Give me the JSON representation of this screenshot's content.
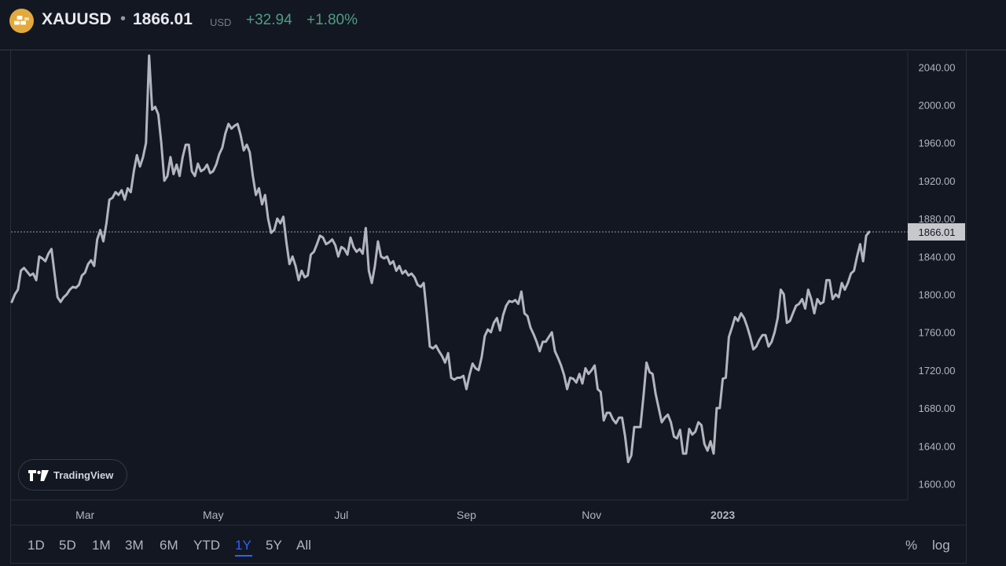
{
  "header": {
    "symbol": "XAUUSD",
    "separator": "•",
    "price": "1866.01",
    "currency": "USD",
    "change": "+32.94",
    "change_pct": "+1.80%",
    "positive_color": "#4f9d80"
  },
  "badge": {
    "text": "TradingView"
  },
  "ranges": [
    "1D",
    "5D",
    "1M",
    "3M",
    "6M",
    "YTD",
    "1Y",
    "5Y",
    "All"
  ],
  "active_range": "1Y",
  "options": {
    "percent": "%",
    "log": "log"
  },
  "chart_data": {
    "type": "line",
    "series": [
      {
        "values": [
          1792,
          1800,
          1805,
          1825,
          1828,
          1824,
          1820,
          1822,
          1815,
          1840,
          1838,
          1835,
          1843,
          1848,
          1822,
          1797,
          1792,
          1797,
          1800,
          1805,
          1808,
          1807,
          1810,
          1820,
          1823,
          1832,
          1836,
          1830,
          1858,
          1868,
          1856,
          1875,
          1900,
          1902,
          1908,
          1905,
          1910,
          1900,
          1912,
          1908,
          1930,
          1947,
          1935,
          1945,
          1960,
          2052,
          1995,
          1998,
          1990,
          1960,
          1920,
          1925,
          1945,
          1927,
          1937,
          1925,
          1945,
          1958,
          1958,
          1930,
          1925,
          1938,
          1930,
          1932,
          1937,
          1928,
          1930,
          1937,
          1948,
          1955,
          1970,
          1980,
          1975,
          1978,
          1980,
          1968,
          1952,
          1958,
          1950,
          1925,
          1905,
          1912,
          1895,
          1905,
          1880,
          1865,
          1868,
          1880,
          1875,
          1882,
          1855,
          1832,
          1840,
          1830,
          1815,
          1825,
          1818,
          1820,
          1842,
          1845,
          1853,
          1862,
          1860,
          1853,
          1855,
          1858,
          1852,
          1840,
          1850,
          1848,
          1842,
          1860,
          1850,
          1845,
          1848,
          1843,
          1870,
          1825,
          1812,
          1830,
          1856,
          1840,
          1838,
          1840,
          1832,
          1835,
          1825,
          1830,
          1822,
          1825,
          1820,
          1822,
          1818,
          1810,
          1808,
          1812,
          1780,
          1745,
          1743,
          1746,
          1740,
          1735,
          1728,
          1738,
          1712,
          1710,
          1712,
          1712,
          1714,
          1700,
          1715,
          1727,
          1722,
          1720,
          1734,
          1756,
          1763,
          1760,
          1770,
          1775,
          1762,
          1778,
          1788,
          1793,
          1792,
          1794,
          1790,
          1803,
          1780,
          1777,
          1765,
          1758,
          1750,
          1740,
          1750,
          1750,
          1755,
          1760,
          1740,
          1733,
          1725,
          1715,
          1700,
          1712,
          1711,
          1707,
          1716,
          1706,
          1722,
          1716,
          1720,
          1725,
          1700,
          1697,
          1667,
          1675,
          1675,
          1668,
          1664,
          1670,
          1670,
          1650,
          1623,
          1630,
          1660,
          1660,
          1660,
          1692,
          1728,
          1718,
          1716,
          1695,
          1680,
          1665,
          1670,
          1673,
          1665,
          1650,
          1648,
          1657,
          1632,
          1632,
          1658,
          1652,
          1655,
          1665,
          1662,
          1642,
          1635,
          1645,
          1632,
          1680,
          1680,
          1711,
          1712,
          1755,
          1765,
          1776,
          1772,
          1780,
          1775,
          1766,
          1755,
          1742,
          1745,
          1752,
          1757,
          1757,
          1745,
          1750,
          1760,
          1775,
          1805,
          1800,
          1770,
          1772,
          1780,
          1788,
          1790,
          1795,
          1785,
          1805,
          1795,
          1780,
          1795,
          1790,
          1792,
          1815,
          1815,
          1795,
          1800,
          1797,
          1812,
          1805,
          1812,
          1822,
          1825,
          1840,
          1853,
          1835,
          1862,
          1866.01
        ],
        "color": "#b2b5be",
        "last_value": "1866.01"
      }
    ],
    "x_ticks": [
      "Mar",
      "May",
      "Jul",
      "Sep",
      "Nov",
      "2023"
    ],
    "x_tick_index": [
      24,
      66,
      108,
      149,
      190,
      233
    ],
    "y_ticks": [
      "1600.00",
      "1640.00",
      "1680.00",
      "1720.00",
      "1760.00",
      "1800.00",
      "1840.00",
      "1880.00",
      "1920.00",
      "1960.00",
      "2000.00",
      "2040.00"
    ],
    "ylim": [
      1583,
      2056
    ],
    "grid": false
  }
}
